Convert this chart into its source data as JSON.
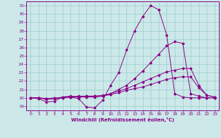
{
  "xlabel": "Windchill (Refroidissement éolien,°C)",
  "background_color": "#cce8e8",
  "grid_color": "#99cccc",
  "line_color": "#880088",
  "xlim": [
    -0.5,
    23.5
  ],
  "ylim": [
    18.5,
    31.5
  ],
  "yticks": [
    19,
    20,
    21,
    22,
    23,
    24,
    25,
    26,
    27,
    28,
    29,
    30,
    31
  ],
  "xticks": [
    0,
    1,
    2,
    3,
    4,
    5,
    6,
    7,
    8,
    9,
    10,
    11,
    12,
    13,
    14,
    15,
    16,
    17,
    18,
    19,
    20,
    21,
    22,
    23
  ],
  "lines": [
    {
      "x": [
        0,
        1,
        2,
        3,
        4,
        5,
        6,
        7,
        8,
        9,
        10,
        11,
        12,
        13,
        14,
        15,
        16,
        17,
        18,
        19,
        20,
        21,
        22,
        23
      ],
      "y": [
        20,
        19.9,
        19.5,
        19.6,
        20.1,
        20.1,
        19.9,
        18.9,
        18.8,
        19.7,
        21.5,
        23.0,
        25.7,
        28.0,
        29.7,
        31.0,
        30.5,
        27.5,
        20.5,
        20.1,
        20.0,
        20.0,
        20.0,
        20.0
      ]
    },
    {
      "x": [
        0,
        1,
        2,
        3,
        4,
        5,
        6,
        7,
        8,
        9,
        10,
        11,
        12,
        13,
        14,
        15,
        16,
        17,
        18,
        19,
        20,
        21,
        22,
        23
      ],
      "y": [
        20,
        20.0,
        19.8,
        19.9,
        20.1,
        20.2,
        20.1,
        20.1,
        20.1,
        20.2,
        20.5,
        21.0,
        21.5,
        22.3,
        23.2,
        24.2,
        25.2,
        26.2,
        26.7,
        26.5,
        20.5,
        20.2,
        20.0,
        20.0
      ]
    },
    {
      "x": [
        0,
        1,
        2,
        3,
        4,
        5,
        6,
        7,
        8,
        9,
        10,
        11,
        12,
        13,
        14,
        15,
        16,
        17,
        18,
        19,
        20,
        21,
        22,
        23
      ],
      "y": [
        20,
        20.0,
        19.9,
        19.9,
        20.0,
        20.1,
        20.2,
        20.2,
        20.2,
        20.3,
        20.5,
        20.8,
        21.1,
        21.5,
        21.9,
        22.3,
        22.7,
        23.1,
        23.3,
        23.5,
        23.5,
        21.5,
        20.3,
        20.1
      ]
    },
    {
      "x": [
        0,
        1,
        2,
        3,
        4,
        5,
        6,
        7,
        8,
        9,
        10,
        11,
        12,
        13,
        14,
        15,
        16,
        17,
        18,
        19,
        20,
        21,
        22,
        23
      ],
      "y": [
        20,
        20.0,
        19.9,
        20.0,
        20.0,
        20.1,
        20.1,
        20.2,
        20.2,
        20.2,
        20.4,
        20.6,
        20.9,
        21.1,
        21.3,
        21.6,
        21.9,
        22.2,
        22.4,
        22.5,
        22.5,
        21.2,
        20.3,
        20.1
      ]
    }
  ]
}
